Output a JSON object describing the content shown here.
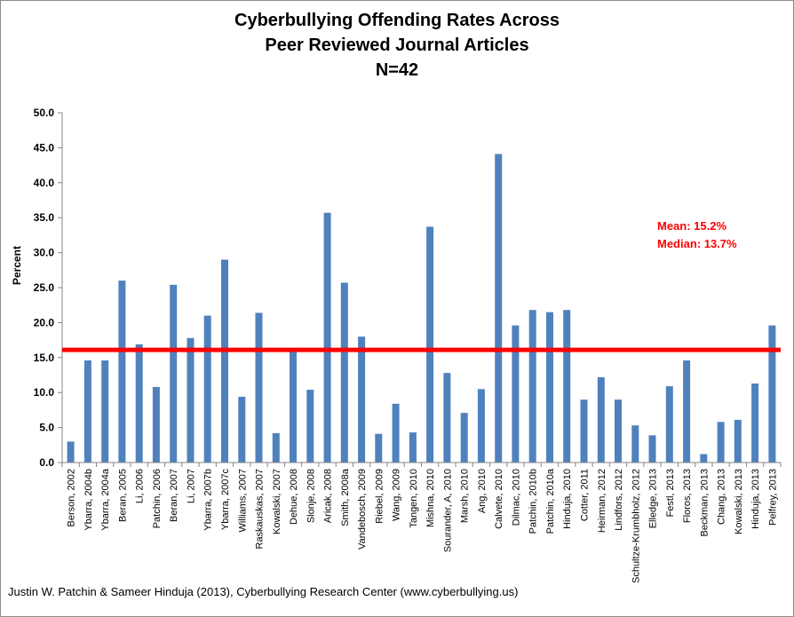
{
  "chart_data": {
    "type": "bar",
    "title_lines": [
      "Cyberbullying Offending Rates Across",
      "Peer Reviewed Journal Articles",
      "N=42"
    ],
    "ylabel": "Percent",
    "xlabel": "",
    "ylim": [
      0,
      50
    ],
    "yticks": [
      "0.0",
      "5.0",
      "10.0",
      "15.0",
      "20.0",
      "25.0",
      "30.0",
      "35.0",
      "40.0",
      "45.0",
      "50.0"
    ],
    "grid": false,
    "bar_color": "#4f81bd",
    "reference_line": {
      "value": 16.1,
      "color": "#ff0000"
    },
    "annotations": [
      {
        "text": "Mean: 15.2%",
        "color": "#ff0000"
      },
      {
        "text": "Median: 13.7%",
        "color": "#ff0000"
      }
    ],
    "categories": [
      "Berson, 2002",
      "Ybarra, 2004b",
      "Ybarra, 2004a",
      "Beran, 2005",
      "Li, 2006",
      "Patchin, 2006",
      "Beran, 2007",
      "Li, 2007",
      "Ybarra, 2007b",
      "Ybarra, 2007c",
      "Williams, 2007",
      "Raskauskas, 2007",
      "Kowalski, 2007",
      "Dehue, 2008",
      "Slonje, 2008",
      "Aricak, 2008",
      "Smith, 2008a",
      "Vandebosch, 2009",
      "Riebel, 2009",
      "Wang, 2009",
      "Tangen, 2010",
      "Mishna, 2010",
      "Sourander, A, 2010",
      "Marsh, 2010",
      "Ang, 2010",
      "Calvete, 2010",
      "Dilmac, 2010",
      "Patchin, 2010b",
      "Patchin, 2010a",
      "Hinduja, 2010",
      "Cotter, 2011",
      "Heirman, 2012",
      "Lindfors, 2012",
      "Schultze-Krumbholz, 2012",
      "Elledge, 2013",
      "Festl, 2013",
      "Floros, 2013",
      "Beckman, 2013",
      "Chang, 2013",
      "Kowalski, 2013",
      "Hinduja, 2013",
      "Pelfrey, 2013"
    ],
    "values": [
      3.0,
      14.6,
      14.6,
      26.0,
      16.9,
      10.8,
      25.4,
      17.8,
      21.0,
      29.0,
      9.4,
      21.4,
      4.2,
      16.0,
      10.4,
      35.7,
      25.7,
      18.0,
      4.1,
      8.4,
      4.3,
      33.7,
      12.8,
      7.1,
      10.5,
      44.1,
      19.6,
      21.8,
      21.5,
      21.8,
      9.0,
      12.2,
      9.0,
      5.3,
      3.9,
      10.9,
      14.6,
      1.2,
      5.8,
      6.1,
      11.3,
      19.6
    ]
  },
  "source_note": "Justin W. Patchin & Sameer Hinduja (2013), Cyberbullying Research Center (www.cyberbullying.us)"
}
